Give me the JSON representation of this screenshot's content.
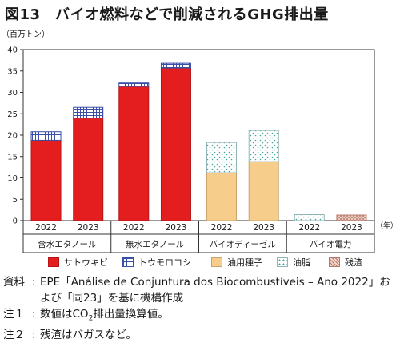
{
  "page_title": "図13　バイオ燃料などで削減されるGHG排出量",
  "colors": {
    "sugarcane": "#e41e1e",
    "corn": "#ffffff",
    "corn_pattern": "#3a4fa8",
    "oilseed": "#f7cd8c",
    "fat": "#ffffff",
    "fat_pattern": "#3fa6a0",
    "residue": "#f3d8c8",
    "residue_pattern": "#b3776d"
  },
  "chart_data": {
    "type": "bar",
    "stacked": true,
    "ylabel": "（百万トン）",
    "xunit": "（年）",
    "ylim": [
      0,
      40
    ],
    "yticks": [
      0,
      5,
      10,
      15,
      20,
      25,
      30,
      35,
      40
    ],
    "grid": false,
    "groups": [
      {
        "name": "含水エタノール",
        "categories": [
          "2022",
          "2023"
        ]
      },
      {
        "name": "無水エタノール",
        "categories": [
          "2022",
          "2023"
        ]
      },
      {
        "name": "バイオディーゼル",
        "categories": [
          "2022",
          "2023"
        ]
      },
      {
        "name": "バイオ電力",
        "categories": [
          "2022",
          "2023"
        ]
      }
    ],
    "series": [
      {
        "name": "サトウキビ",
        "key": "sugarcane",
        "values": [
          18.8,
          24.0,
          31.4,
          35.7,
          0,
          0,
          0,
          0
        ]
      },
      {
        "name": "トウモロコシ",
        "key": "corn",
        "values": [
          2.0,
          2.5,
          0.8,
          1.1,
          0,
          0,
          0,
          0
        ]
      },
      {
        "name": "油用種子",
        "key": "oilseed",
        "values": [
          0,
          0,
          0,
          0,
          11.2,
          13.8,
          0,
          0
        ]
      },
      {
        "name": "油脂",
        "key": "fat",
        "values": [
          0,
          0,
          0,
          0,
          7.1,
          7.3,
          1.4,
          0
        ]
      },
      {
        "name": "残渣",
        "key": "residue",
        "values": [
          0,
          0,
          0,
          0,
          0,
          0,
          0,
          1.3
        ]
      }
    ]
  },
  "notes": [
    {
      "label": "資料",
      "text": "EPE「Análise de Conjuntura dos Biocombustíveis – Ano 2022」および「同23」を基に機構作成"
    },
    {
      "label": "注１",
      "text_before": "数値はCO",
      "sub": "2",
      "text_after": "排出量換算値。"
    },
    {
      "label": "注２",
      "text": "残渣はバガスなど。"
    }
  ]
}
